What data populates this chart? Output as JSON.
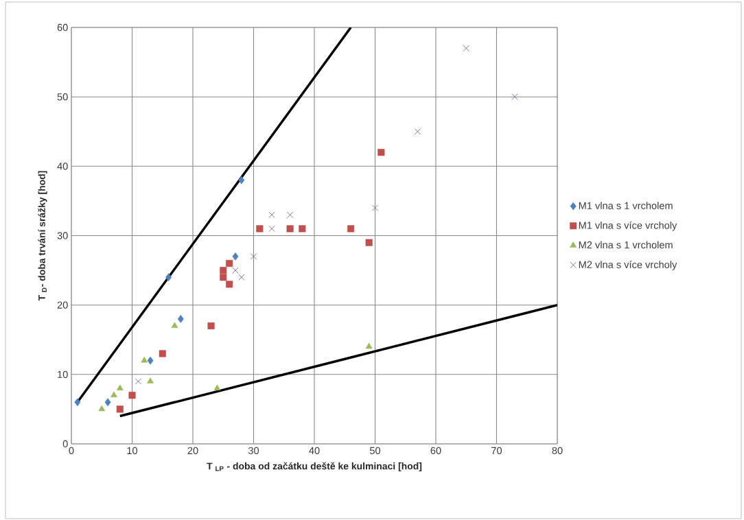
{
  "chart_data": {
    "type": "scatter",
    "xlabel": "T $_{LP}$ - doba od začátku deště ke kulminaci  [hod]",
    "ylabel": "T $_{D}$- doba trvání srážky  [hod]",
    "xlim": [
      0,
      80
    ],
    "ylim": [
      0,
      60
    ],
    "xticks": [
      0,
      10,
      20,
      30,
      40,
      50,
      60,
      70,
      80
    ],
    "yticks": [
      0,
      10,
      20,
      30,
      40,
      50,
      60
    ],
    "grid": true,
    "legend": "right",
    "series": [
      {
        "name": "M1 vlna s 1 vrcholem",
        "color": "#4f81bd",
        "marker": "diamond",
        "x": [
          1,
          6,
          13,
          16,
          18,
          27,
          28
        ],
        "values": [
          6,
          6,
          12,
          24,
          18,
          27,
          38
        ]
      },
      {
        "name": "M1 vlna s více vrcholy",
        "color": "#c0504d",
        "marker": "square",
        "x": [
          8,
          10,
          15,
          23,
          25,
          25,
          26,
          26,
          31,
          36,
          38,
          46,
          49,
          51
        ],
        "values": [
          5,
          7,
          13,
          17,
          25,
          24,
          26,
          23,
          31,
          31,
          31,
          31,
          29,
          42
        ]
      },
      {
        "name": "M2 vlna s 1 vrcholem",
        "color": "#9bbb59",
        "marker": "triangle",
        "x": [
          5,
          7,
          8,
          12,
          13,
          17,
          24,
          49
        ],
        "values": [
          5,
          7,
          8,
          12,
          9,
          17,
          8,
          14
        ]
      },
      {
        "name": "M2 vlna s více vrcholy",
        "color": "#8064a2",
        "marker": "cross",
        "x": [
          11,
          27,
          28,
          30,
          33,
          33,
          36,
          50,
          57,
          65,
          73
        ],
        "values": [
          9,
          25,
          24,
          27,
          31,
          33,
          33,
          34,
          45,
          57,
          50
        ]
      },
      {
        "type": "line",
        "color": "#000000",
        "marker": "none",
        "x": [
          1,
          46
        ],
        "values": [
          6,
          60
        ]
      },
      {
        "type": "line",
        "color": "#000000",
        "marker": "none",
        "x": [
          8,
          80
        ],
        "values": [
          4,
          20
        ]
      }
    ]
  }
}
